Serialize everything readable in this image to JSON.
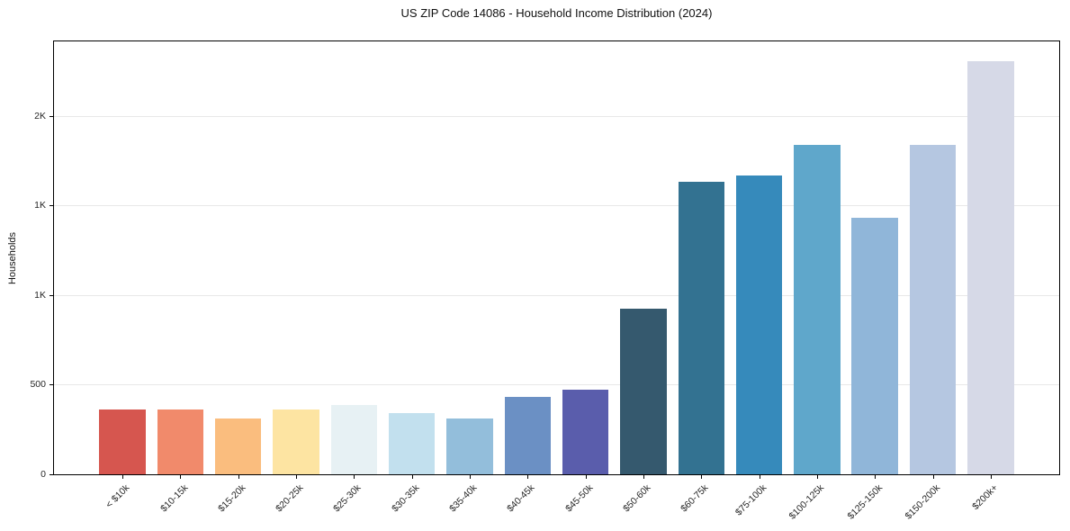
{
  "chart_data": {
    "type": "bar",
    "title": "US ZIP Code 14086 - Household Income Distribution (2024)",
    "xlabel": "",
    "ylabel": "Households",
    "categories": [
      "< $10k",
      "$10-15k",
      "$15-20k",
      "$20-25k",
      "$25-30k",
      "$30-35k",
      "$35-40k",
      "$40-45k",
      "$45-50k",
      "$50-60k",
      "$60-75k",
      "$75-100k",
      "$100-125k",
      "$125-150k",
      "$150-200k",
      "$200k+"
    ],
    "values": [
      360,
      362,
      310,
      360,
      388,
      343,
      310,
      430,
      470,
      925,
      1630,
      1665,
      1840,
      1430,
      1840,
      2305
    ],
    "bar_colors": [
      "#d6564f",
      "#f18a6b",
      "#fabd7e",
      "#fde4a2",
      "#e7f1f4",
      "#c2e0ee",
      "#93bedb",
      "#6b90c4",
      "#5a5dac",
      "#35596e",
      "#337291",
      "#368abb",
      "#5fa7cb",
      "#90b6d9",
      "#b5c7e1",
      "#d6d9e7"
    ],
    "ylim": [
      0,
      2415
    ],
    "yticks": [
      {
        "value": 0,
        "label": "0"
      },
      {
        "value": 500,
        "label": "500"
      },
      {
        "value": 1000,
        "label": "1K"
      },
      {
        "value": 1500,
        "label": "1K"
      },
      {
        "value": 2000,
        "label": "2K"
      }
    ],
    "grid": "horizontal",
    "legend": "none",
    "colors": {
      "background": "#ffffff",
      "spine": "#000000",
      "grid_line": "#e8e8e8",
      "tick_text": "#262626",
      "title_text": "#111111"
    }
  }
}
